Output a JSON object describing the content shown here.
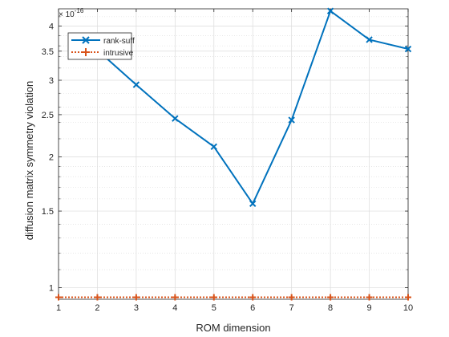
{
  "chart_data": {
    "type": "line",
    "xlabel": "ROM dimension",
    "ylabel": "diffusion matrix symmetry violation",
    "exponent_label": "× 10",
    "exponent_power": "-16",
    "y_scale": "log",
    "y_scale_factor": 1e-16,
    "xlim": [
      1,
      10
    ],
    "ylim": [
      0.94,
      4.38
    ],
    "x_ticks": [
      1,
      2,
      3,
      4,
      5,
      6,
      7,
      8,
      9,
      10
    ],
    "y_ticks": [
      1,
      1.5,
      2,
      2.5,
      3,
      3.5,
      4
    ],
    "y_tick_labels": [
      "1",
      "1.5",
      "2",
      "2.5",
      "3",
      "3.5",
      "4"
    ],
    "y_minor_ticks": [
      1.1,
      1.2,
      1.3,
      1.4,
      1.6,
      1.7,
      1.8,
      1.9,
      2.2,
      2.4,
      2.6,
      2.8,
      3.2,
      3.4,
      3.6,
      3.8,
      4.2
    ],
    "grid": true,
    "legend_position": "top-left",
    "series": [
      {
        "name": "rank-suff",
        "color": "#0072BD",
        "line_style": "solid",
        "marker": "x",
        "x": [
          2,
          3,
          4,
          5,
          6,
          7,
          8,
          9,
          10
        ],
        "values": [
          3.52,
          2.93,
          2.45,
          2.11,
          1.56,
          2.43,
          4.33,
          3.72,
          3.54
        ]
      },
      {
        "name": "intrusive",
        "color": "#D95319",
        "line_style": "dotted",
        "marker": "+",
        "x": [
          1,
          2,
          3,
          4,
          5,
          6,
          7,
          8,
          9,
          10
        ],
        "values": [
          0.95,
          0.95,
          0.95,
          0.95,
          0.95,
          0.95,
          0.95,
          0.95,
          0.95,
          0.95
        ]
      }
    ]
  }
}
